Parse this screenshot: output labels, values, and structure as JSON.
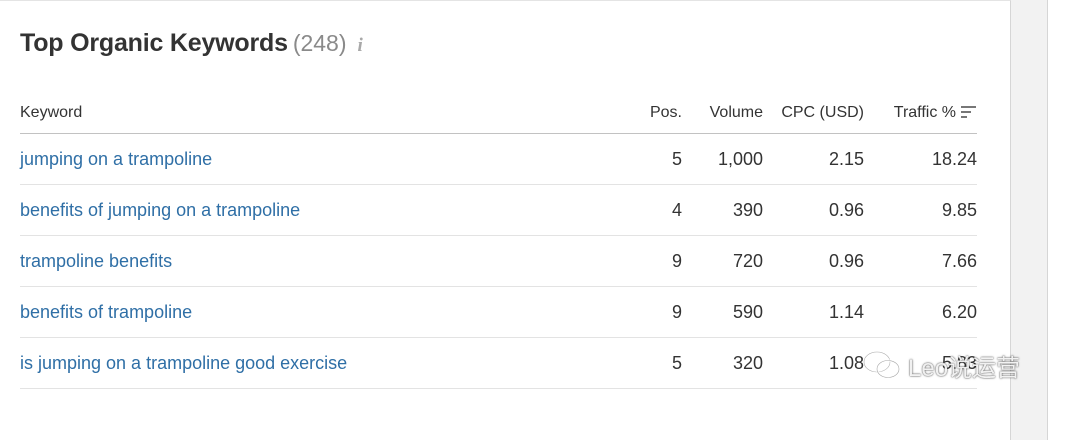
{
  "widget": {
    "title": "Top Organic Keywords",
    "count": "(248)",
    "info_icon": "info-icon"
  },
  "table": {
    "headers": {
      "keyword": "Keyword",
      "pos": "Pos.",
      "volume": "Volume",
      "cpc": "CPC (USD)",
      "traffic": "Traffic %"
    },
    "sort_icon": "sort-descending-icon",
    "rows": [
      {
        "keyword": "jumping on a trampoline",
        "pos": "5",
        "volume": "1,000",
        "cpc": "2.15",
        "traffic": "18.24"
      },
      {
        "keyword": "benefits of jumping on a trampoline",
        "pos": "4",
        "volume": "390",
        "cpc": "0.96",
        "traffic": "9.85"
      },
      {
        "keyword": "trampoline benefits",
        "pos": "9",
        "volume": "720",
        "cpc": "0.96",
        "traffic": "7.66"
      },
      {
        "keyword": "benefits of trampoline",
        "pos": "9",
        "volume": "590",
        "cpc": "1.14",
        "traffic": "6.20"
      },
      {
        "keyword": "is jumping on a trampoline good exercise",
        "pos": "5",
        "volume": "320",
        "cpc": "1.08",
        "traffic": "5.83"
      }
    ]
  },
  "watermark": {
    "icon": "wechat-icon",
    "text": "Leo说运营"
  },
  "colors": {
    "link": "#2f6fa6",
    "text": "#333333",
    "muted": "#8a8a8a"
  }
}
